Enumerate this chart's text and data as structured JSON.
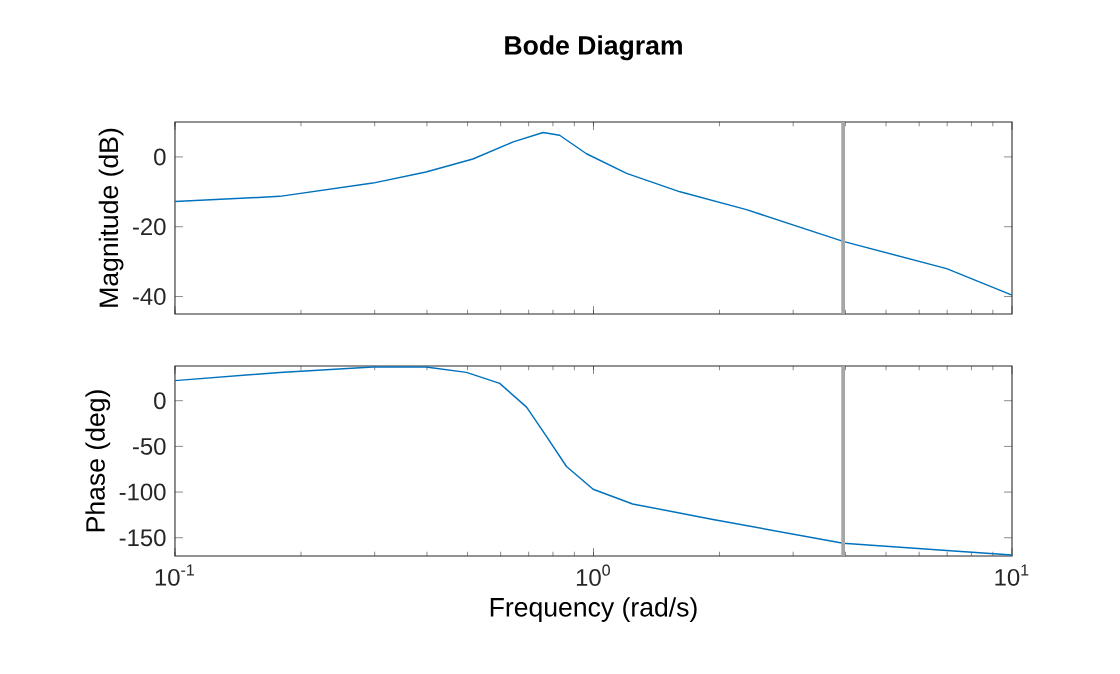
{
  "chart_data": [
    {
      "type": "line",
      "title": "Bode Diagram",
      "ylabel": "Magnitude (dB)",
      "log": "x",
      "tick_labels": "y",
      "grid": false,
      "color": "#0072bd",
      "xlim": [
        0.1,
        10
      ],
      "xticks": [
        0.1,
        1,
        10
      ],
      "ylim": [
        -45,
        10
      ],
      "yticks": [
        -40,
        -20,
        0
      ],
      "x": [
        0.1,
        0.178,
        0.297,
        0.398,
        0.515,
        0.643,
        0.758,
        0.83,
        0.962,
        1.2,
        1.61,
        2.32,
        3.95,
        6.98,
        10
      ],
      "values": [
        -12.8,
        -11.3,
        -7.5,
        -4.3,
        -0.6,
        4.3,
        7.0,
        6.2,
        0.9,
        -4.7,
        -10,
        -15.1,
        -24.2,
        -32,
        -39.6
      ],
      "ref_lines": [
        {
          "axis": "x",
          "value": 3.95,
          "color": "#a6a6a6"
        }
      ]
    },
    {
      "type": "line",
      "xlabel": "Frequency (rad/s)",
      "ylabel": "Phase (deg)",
      "log": "x",
      "grid": false,
      "color": "#0072bd",
      "xlim": [
        0.1,
        10
      ],
      "xticks": [
        {
          "value": 0.1,
          "label": "10$^{-1}$"
        },
        {
          "value": 1,
          "label": "10$^{0}$"
        },
        {
          "value": 10,
          "label": "10$^{1}$"
        }
      ],
      "ylim": [
        -170,
        38
      ],
      "yticks": [
        -150,
        -100,
        -50,
        0
      ],
      "x": [
        0.1,
        0.178,
        0.297,
        0.398,
        0.497,
        0.597,
        0.692,
        0.772,
        0.862,
        0.998,
        1.24,
        1.93,
        3.95,
        6.98,
        10
      ],
      "values": [
        22,
        31,
        37,
        37,
        31,
        19,
        -7,
        -39,
        -72,
        -97,
        -113,
        -130,
        -156,
        -164,
        -169
      ],
      "ref_lines": [
        {
          "axis": "x",
          "value": 3.95,
          "color": "#a6a6a6"
        }
      ]
    }
  ]
}
